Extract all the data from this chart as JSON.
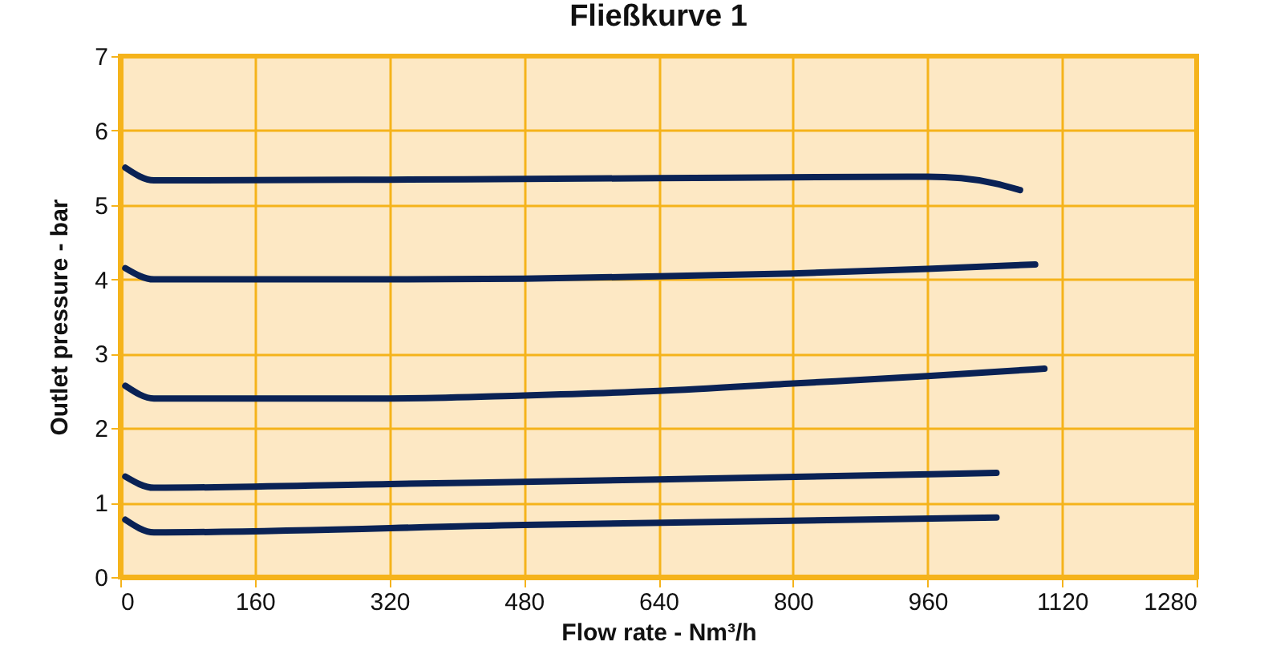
{
  "chart_data": {
    "type": "line",
    "title": "Fließkurve 1",
    "xlabel": "Flow rate - Nm³/h",
    "ylabel": "Outlet pressure - bar",
    "series": [
      {
        "color": "#0a2255",
        "x": [
          6,
          40,
          320,
          640,
          960,
          1000,
          1040,
          1070
        ],
        "values": [
          5.5,
          5.33,
          5.34,
          5.36,
          5.38,
          5.36,
          5.29,
          5.2
        ]
      },
      {
        "color": "#0a2255",
        "x": [
          6,
          40,
          320,
          480,
          640,
          800,
          960,
          1088
        ],
        "values": [
          4.15,
          4.0,
          4.0,
          4.01,
          4.04,
          4.08,
          4.14,
          4.2
        ]
      },
      {
        "color": "#0a2255",
        "x": [
          6,
          40,
          320,
          480,
          640,
          800,
          960,
          1099
        ],
        "values": [
          2.57,
          2.4,
          2.4,
          2.44,
          2.5,
          2.6,
          2.7,
          2.8
        ]
      },
      {
        "color": "#0a2255",
        "x": [
          6,
          40,
          320,
          640,
          1042
        ],
        "values": [
          1.35,
          1.2,
          1.25,
          1.31,
          1.4
        ]
      },
      {
        "color": "#0a2255",
        "x": [
          6,
          40,
          480,
          1042
        ],
        "values": [
          0.77,
          0.6,
          0.7,
          0.8
        ]
      }
    ],
    "xlim": [
      0,
      1280
    ],
    "xticks": [
      0,
      160,
      320,
      480,
      640,
      800,
      960,
      1120,
      1280
    ],
    "ylim": [
      0,
      7
    ],
    "yticks": [
      0,
      1,
      2,
      3,
      4,
      5,
      6,
      7
    ],
    "grid": true,
    "legend": false,
    "marker": "none",
    "line_style": "solid"
  }
}
